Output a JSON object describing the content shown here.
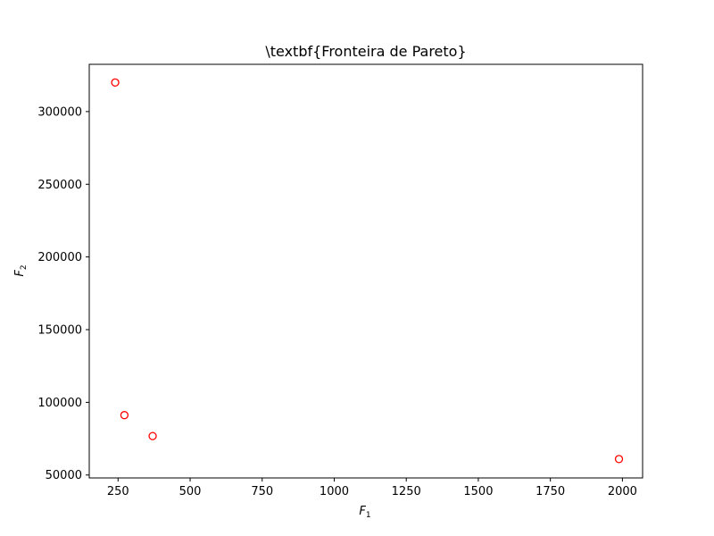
{
  "chart_data": {
    "type": "scatter",
    "title": "\\textbf{Fronteira de Pareto}",
    "xlabel": {
      "main": "F",
      "sub": "1"
    },
    "ylabel": {
      "main": "F",
      "sub": "2"
    },
    "xlim": [
      150,
      2070
    ],
    "ylim": [
      48000,
      332500
    ],
    "xticks": [
      250,
      500,
      750,
      1000,
      1250,
      1500,
      1750,
      2000
    ],
    "yticks": [
      50000,
      100000,
      150000,
      200000,
      250000,
      300000
    ],
    "grid": false,
    "marker": {
      "shape": "open-circle",
      "color": "#ff0000"
    },
    "series": [
      {
        "points": [
          {
            "x": 240,
            "y": 320000
          },
          {
            "x": 272,
            "y": 91200
          },
          {
            "x": 370,
            "y": 76800
          },
          {
            "x": 1988,
            "y": 61000
          }
        ]
      }
    ]
  }
}
